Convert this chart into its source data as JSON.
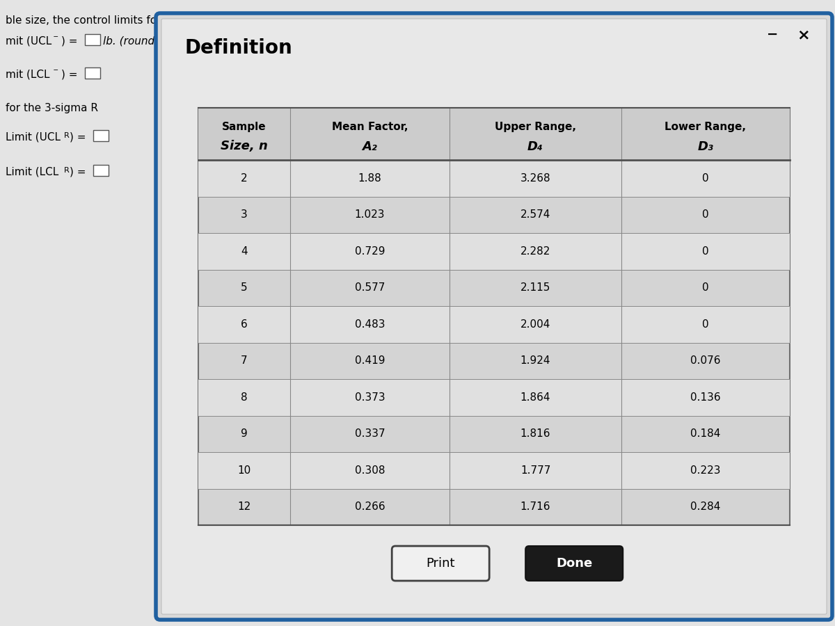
{
  "title": "Definition",
  "sample_sizes": [
    2,
    3,
    4,
    5,
    6,
    7,
    8,
    9,
    10,
    12
  ],
  "a2_values": [
    "1.88",
    "1.023",
    "0.729",
    "0.577",
    "0.483",
    "0.419",
    "0.373",
    "0.337",
    "0.308",
    "0.266"
  ],
  "d4_values": [
    "3.268",
    "2.574",
    "2.282",
    "2.115",
    "2.004",
    "1.924",
    "1.864",
    "1.816",
    "1.777",
    "1.716"
  ],
  "d3_values": [
    "0",
    "0",
    "0",
    "0",
    "0",
    "0.076",
    "0.136",
    "0.184",
    "0.223",
    "0.284"
  ],
  "bg_page": "#e8e8e8",
  "bg_dialog": "#e0e0e0",
  "dialog_border": "#2060a0",
  "table_border": "#888888",
  "table_bg": "#d8d8d8",
  "button_print_bg": "#f0f0f0",
  "button_done_bg": "#1a1a1a",
  "button_done_text": "#ffffff",
  "button_print_text": "#000000"
}
